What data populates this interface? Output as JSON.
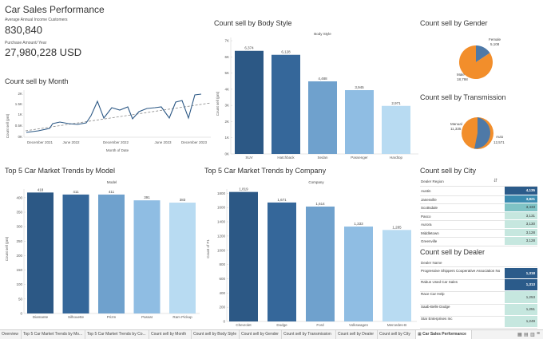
{
  "dashboard": {
    "title": "Car Sales Performance",
    "kpi1_label": "Average Annual Income Customers",
    "kpi1_value": "830,840",
    "kpi2_label": "Purchase Amount/ Year",
    "kpi2_value": "27,980,228 USD"
  },
  "month_chart": {
    "title": "Count sell by Month",
    "ylabel": "Count sell (pnt)",
    "xlabel": "Month of Date",
    "yticks": [
      "2K",
      "1.5K",
      "1K",
      "0.5K",
      "0K"
    ],
    "xticks": [
      "December 2021",
      "June 2022",
      "December 2022",
      "June 2023",
      "December 2023"
    ]
  },
  "body_chart": {
    "title": "Count sell by Body Style",
    "header": "Body Style",
    "ylabel": "Count sell (pnt)",
    "yticks": [
      "7K",
      "6K",
      "5K",
      "4K",
      "3K",
      "2K",
      "1K",
      "0K"
    ],
    "categories": [
      "SUV",
      "Hatchback",
      "Sedan",
      "Passenger",
      "Hardtop"
    ],
    "value_labels": [
      "6,374",
      "6,128",
      "4,488",
      "3,945",
      "2,971"
    ]
  },
  "gender_chart": {
    "title": "Count sell by Gender",
    "female_label": "Female",
    "female_value": "5,108",
    "male_label": "Male",
    "male_value": "18,798"
  },
  "trans_chart": {
    "title": "Count sell by Transmission",
    "manual_label": "Manual",
    "manual_value": "11,335",
    "auto_label": "Auto",
    "auto_value": "12,571"
  },
  "model_chart": {
    "title": "Top 5 Car Market Trends by Model",
    "header": "Model",
    "ylabel": "Count sell (pnt)",
    "yticks": [
      "400",
      "350",
      "300",
      "250",
      "200",
      "150",
      "100",
      "50",
      "0"
    ],
    "categories": [
      "Diamante",
      "Silhouette",
      "Prizm",
      "Passat",
      "Ram Pickup"
    ],
    "value_labels": [
      "418",
      "411",
      "411",
      "391",
      "383"
    ]
  },
  "company_chart": {
    "title": "Top 5 Car Market Trends by Company",
    "header": "Company",
    "ylabel": "Count of F1",
    "yticks": [
      "1800",
      "1600",
      "1400",
      "1200",
      "1000",
      "800",
      "600",
      "400",
      "200",
      "0"
    ],
    "categories": [
      "Chevrolet",
      "Dodge",
      "Ford",
      "Volkswagen",
      "Mercedes-B"
    ],
    "value_labels": [
      "1,819",
      "1,671",
      "1,614",
      "1,333",
      "1,285"
    ]
  },
  "city_table": {
    "title": "Count sell by City",
    "header": "Dealer Region",
    "rows": [
      {
        "label": "Austin",
        "value": "4,135",
        "color": "#2b5b8a"
      },
      {
        "label": "Janesville",
        "value": "3,821",
        "color": "#3b8bb0"
      },
      {
        "label": "Scottsdale",
        "value": "3,433",
        "color": "#7fc3c5"
      },
      {
        "label": "Pasco",
        "value": "3,131",
        "color": "#c6e7df"
      },
      {
        "label": "Aurora",
        "value": "3,130",
        "color": "#c6e7df"
      },
      {
        "label": "Middletown",
        "value": "3,128",
        "color": "#c6e7df"
      },
      {
        "label": "Greenville",
        "value": "3,128",
        "color": "#c6e7df"
      }
    ]
  },
  "dealer_table": {
    "title": "Count sell by Dealer",
    "header": "Dealer Name",
    "rows": [
      {
        "label": "Progressive Shippers Cooperative Association No",
        "value": "1,318",
        "color": "#2b5b8a"
      },
      {
        "label": "Rabun Used Car Sales",
        "value": "1,313",
        "color": "#2b5b8a"
      },
      {
        "label": "Race Car Help",
        "value": "1,253",
        "color": "#c6e7df"
      },
      {
        "label": "Saab-Belle Dodge",
        "value": "1,251",
        "color": "#c6e7df"
      },
      {
        "label": "Star Enterprises Inc",
        "value": "1,249",
        "color": "#c6e7df"
      }
    ]
  },
  "tabs": [
    "Overview",
    "Top 5 Car Market Trends by Mo...",
    "Top 5 Car Market Trends by Co...",
    "Count sell by Month",
    "Count sell by Body Style",
    "Count sell by Gender",
    "Count sell by Transmission",
    "Count sell by Dealer",
    "Count sell by City",
    "Car Sales Performance"
  ],
  "colors": {
    "bar1": "#2c5885",
    "bar2": "#35679a",
    "bar3": "#6fa1cd",
    "bar4": "#8fbde3",
    "bar5": "#b8dbf2",
    "orange": "#f28e2b",
    "blue": "#4e79a7"
  }
}
